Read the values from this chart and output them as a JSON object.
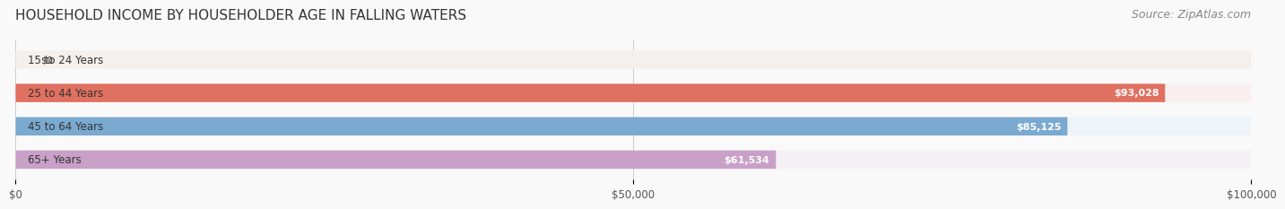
{
  "title": "HOUSEHOLD INCOME BY HOUSEHOLDER AGE IN FALLING WATERS",
  "source": "Source: ZipAtlas.com",
  "categories": [
    "15 to 24 Years",
    "25 to 44 Years",
    "45 to 64 Years",
    "65+ Years"
  ],
  "values": [
    0,
    93028,
    85125,
    61534
  ],
  "labels": [
    "$0",
    "$93,028",
    "$85,125",
    "$61,534"
  ],
  "bar_colors": [
    "#f0c99a",
    "#e07060",
    "#7aaad0",
    "#c9a0c8"
  ],
  "bg_colors": [
    "#f5f0eb",
    "#f9efef",
    "#eff4f9",
    "#f5f0f5"
  ],
  "xlim": [
    0,
    100000
  ],
  "xticks": [
    0,
    50000,
    100000
  ],
  "xtick_labels": [
    "$0",
    "$50,000",
    "$100,000"
  ],
  "title_fontsize": 11,
  "source_fontsize": 9,
  "bar_height": 0.55,
  "background_color": "#f9f9f9"
}
